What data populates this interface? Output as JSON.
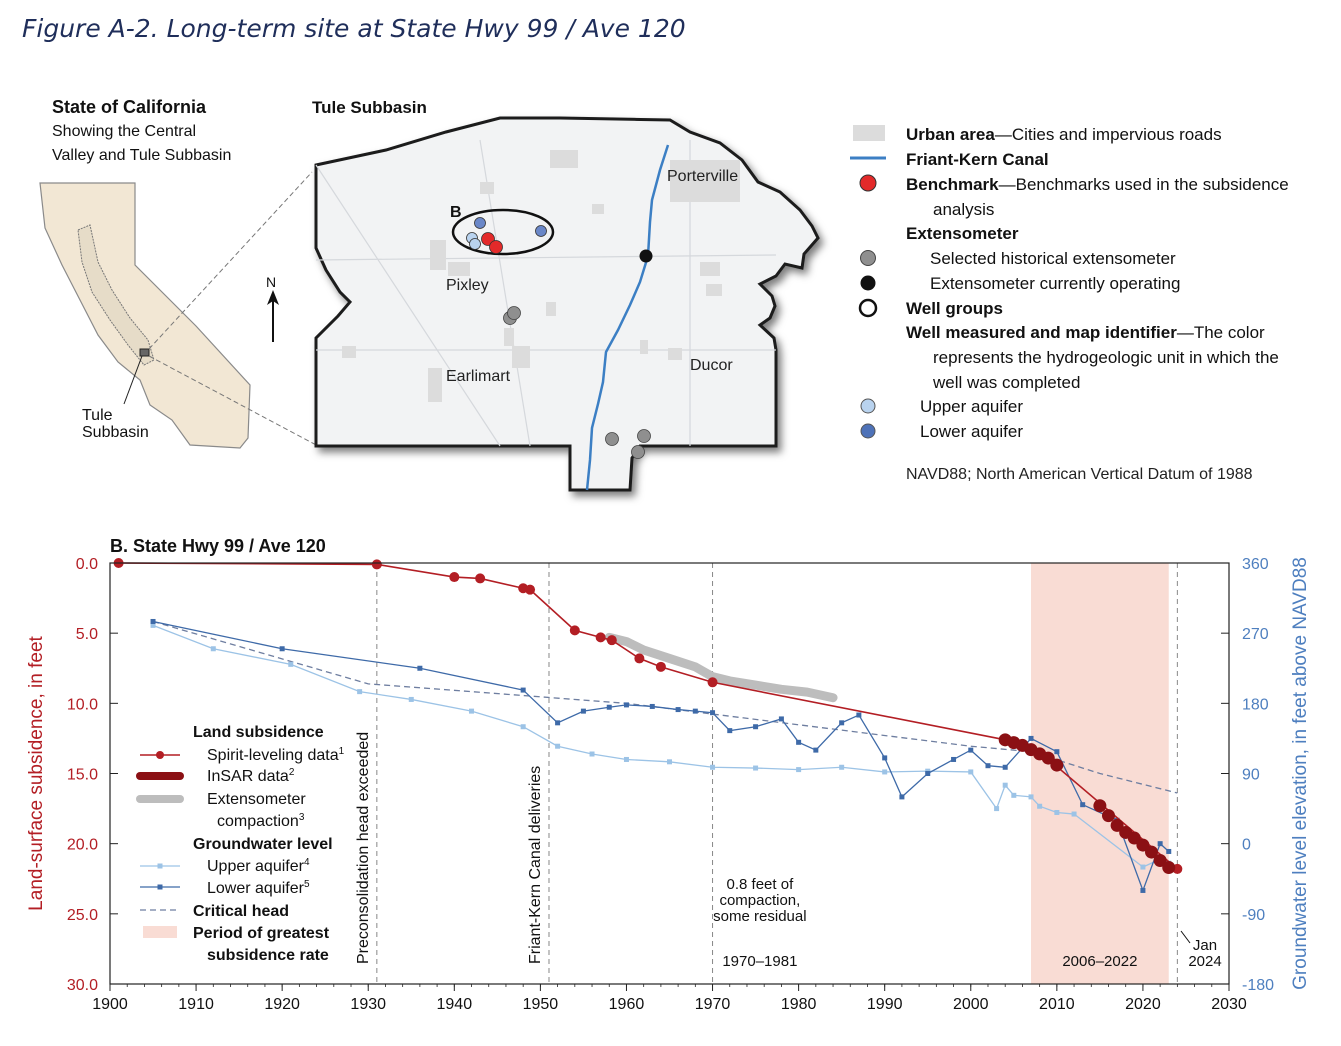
{
  "figure_title": "Figure A-2. Long-term site at State Hwy 99 / Ave 120",
  "colors": {
    "subsidence": "#b31e24",
    "insar": "#8b1014",
    "compaction": "#bdbdbd",
    "upper": "#9cc3e6",
    "lower": "#3e6aa8",
    "critical": "#6e7ea0",
    "period": "#f9dcd4",
    "canal": "#3c7fc4",
    "benchmark": "#e32a2a",
    "right_axis": "#4e7fbf",
    "state_fill": "#f2e7d4",
    "map_fill": "#f2f3f4",
    "urban": "#dcdcdc"
  },
  "inset": {
    "title": "State of California",
    "subtitle_line1": "Showing the Central",
    "subtitle_line2": "Valley and Tule Subbasin",
    "label_line1": "Tule",
    "label_line2": "Subbasin"
  },
  "map": {
    "title": "Tule Subbasin",
    "north": "N",
    "site_label": "B",
    "places": [
      "Porterville",
      "Pixley",
      "Earlimart",
      "Ducor"
    ]
  },
  "legend": {
    "urban_bold": "Urban area",
    "urban_rest": "—Cities and impervious roads",
    "canal": "Friant-Kern Canal",
    "benchmark_bold": "Benchmark",
    "benchmark_rest": "—Benchmarks used in the subsidence",
    "benchmark_line2": "analysis",
    "extensometer": "Extensometer",
    "ext_historical": "Selected historical extensometer",
    "ext_operating": "Extensometer currently operating",
    "well_groups": "Well groups",
    "well_bold": "Well measured and map identifier",
    "well_rest": "—The color",
    "well_line2": "represents the hydrogeologic unit in which the",
    "well_line3": "well was completed",
    "upper": "Upper aquifer",
    "lower": "Lower aquifer",
    "datum_note": "NAVD88; North American Vertical Datum of 1988"
  },
  "chart_data": {
    "type": "line",
    "title": "B. State Hwy 99 / Ave 120",
    "xlim": [
      1900,
      2030
    ],
    "x_ticks": [
      "1900",
      "1910",
      "1920",
      "1930",
      "1940",
      "1950",
      "1960",
      "1970",
      "1980",
      "1990",
      "2000",
      "2010",
      "2020",
      "2030"
    ],
    "ylabel_left": "Land-surface subsidence, in feet",
    "ylim_left": [
      0,
      30
    ],
    "left_ticks": [
      "0.0",
      "5.0",
      "10.0",
      "15.0",
      "20.0",
      "25.0",
      "30.0"
    ],
    "ylabel_right": "Groundwater level elevation, in feet above NAVD88",
    "ylim_right": [
      360,
      -180
    ],
    "right_ticks": [
      "360",
      "270",
      "180",
      "90",
      "0",
      "-90",
      "-180"
    ],
    "grid": false,
    "legend_position": "bottom-left",
    "legend": {
      "land_header": "Land subsidence",
      "spirit": "Spirit-leveling data",
      "spirit_sup": "1",
      "insar": "InSAR data",
      "insar_sup": "2",
      "ext_line1": "Extensometer",
      "ext_line2": "compaction",
      "ext_sup": "3",
      "gw_header": "Groundwater level",
      "upper": "Upper aquifer",
      "upper_sup": "4",
      "lower": "Lower aquifer",
      "lower_sup": "5",
      "critical": "Critical head",
      "period_line1": "Period of greatest",
      "period_line2": "subsidence rate"
    },
    "events": [
      {
        "x": 1931,
        "label": "Preconsolidation head exceeded"
      },
      {
        "x": 1951,
        "label": "Friant-Kern Canal deliveries"
      },
      {
        "x": 1970,
        "label": ""
      },
      {
        "x": 2024,
        "label": ""
      }
    ],
    "annotations": {
      "compaction_line1": "0.8 feet of",
      "compaction_line2": "compaction,",
      "compaction_line3": "some residual",
      "period_1970": "1970–1981",
      "period_2006": "2006–2022",
      "jan_line1": "Jan",
      "jan_line2": "2024"
    },
    "period_shade": [
      2007,
      2023
    ],
    "series": [
      {
        "name": "Spirit-leveling data",
        "axis": "left",
        "x": [
          1901,
          1931,
          1940,
          1943,
          1948,
          1948.8,
          1954,
          1957,
          1958.3,
          1961.5,
          1964,
          1970,
          2004,
          2010,
          2024
        ],
        "y": [
          0.0,
          0.1,
          1.0,
          1.1,
          1.8,
          1.9,
          4.8,
          5.3,
          5.5,
          6.8,
          7.4,
          8.5,
          12.6,
          14.5,
          21.8
        ]
      },
      {
        "name": "InSAR data",
        "axis": "left",
        "x": [
          2004,
          2005,
          2006,
          2007,
          2008,
          2009,
          2010,
          2015,
          2016,
          2017,
          2018,
          2019,
          2020,
          2021,
          2022,
          2023
        ],
        "y": [
          12.6,
          12.8,
          13.0,
          13.3,
          13.6,
          13.9,
          14.4,
          17.3,
          18.0,
          18.7,
          19.2,
          19.6,
          20.1,
          20.6,
          21.2,
          21.7
        ]
      },
      {
        "name": "Extensometer compaction",
        "axis": "left",
        "x": [
          1958,
          1960,
          1962,
          1965,
          1968,
          1970,
          1972,
          1975,
          1978,
          1981,
          1984
        ],
        "y": [
          5.3,
          5.6,
          6.2,
          6.8,
          7.4,
          8.1,
          8.4,
          8.7,
          9.0,
          9.2,
          9.6
        ]
      },
      {
        "name": "Upper aquifer",
        "axis": "right",
        "x": [
          1905,
          1912,
          1921,
          1929,
          1935,
          1942,
          1948,
          1952,
          1956,
          1960,
          1965,
          1970,
          1975,
          1980,
          1985,
          1990,
          1995,
          2000,
          2003,
          2004,
          2005,
          2007,
          2008,
          2010,
          2012,
          2020,
          2022,
          2023
        ],
        "y": [
          280,
          250,
          230,
          195,
          185,
          170,
          150,
          125,
          115,
          108,
          105,
          98,
          97,
          95,
          98,
          92,
          93,
          92,
          45,
          75,
          62,
          60,
          48,
          40,
          38,
          -30,
          -20,
          -25
        ]
      },
      {
        "name": "Lower aquifer",
        "axis": "right",
        "x": [
          1905,
          1920,
          1936,
          1948,
          1952,
          1955,
          1958,
          1960,
          1963,
          1966,
          1968,
          1970,
          1972,
          1975,
          1978,
          1980,
          1982,
          1985,
          1987,
          1990,
          1992,
          1995,
          1998,
          2000,
          2002,
          2004,
          2007,
          2010,
          2013,
          2017,
          2020,
          2022,
          2023
        ],
        "y": [
          285,
          250,
          225,
          197,
          155,
          170,
          175,
          178,
          176,
          172,
          170,
          168,
          145,
          150,
          160,
          130,
          120,
          155,
          165,
          110,
          60,
          90,
          108,
          120,
          100,
          98,
          135,
          118,
          50,
          30,
          -60,
          0,
          -10
        ]
      },
      {
        "name": "Critical head",
        "axis": "right",
        "x": [
          1905,
          1930,
          1960,
          2000,
          2007,
          2015,
          2024
        ],
        "y": [
          285,
          205,
          180,
          125,
          118,
          90,
          65
        ]
      }
    ]
  }
}
